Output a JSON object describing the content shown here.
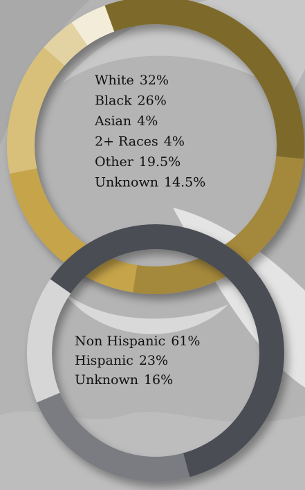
{
  "chart_data": [
    {
      "type": "pie",
      "categories": [
        "White",
        "Black",
        "Other",
        "Unknown",
        "Asian",
        "2+ Races"
      ],
      "values": [
        32,
        26,
        19.5,
        14.5,
        4,
        4
      ],
      "value_labels": [
        "32%",
        "26%",
        "19.5%",
        "14.5%",
        "4%",
        "4%"
      ],
      "colors": [
        "#7d6b2c",
        "#a4883a",
        "#c6a448",
        "#d8c07a",
        "#e3d3a3",
        "#f3ecd8"
      ],
      "label_order": [
        0,
        1,
        4,
        5,
        2,
        3
      ]
    },
    {
      "type": "pie",
      "categories": [
        "Non Hispanic",
        "Hispanic",
        "Unknown"
      ],
      "values": [
        61,
        23,
        16
      ],
      "value_labels": [
        "61%",
        "23%",
        "16%"
      ],
      "colors": [
        "#4c4e54",
        "#7a7c82",
        "#d6d6d6"
      ],
      "label_order": [
        0,
        1,
        2
      ]
    }
  ]
}
